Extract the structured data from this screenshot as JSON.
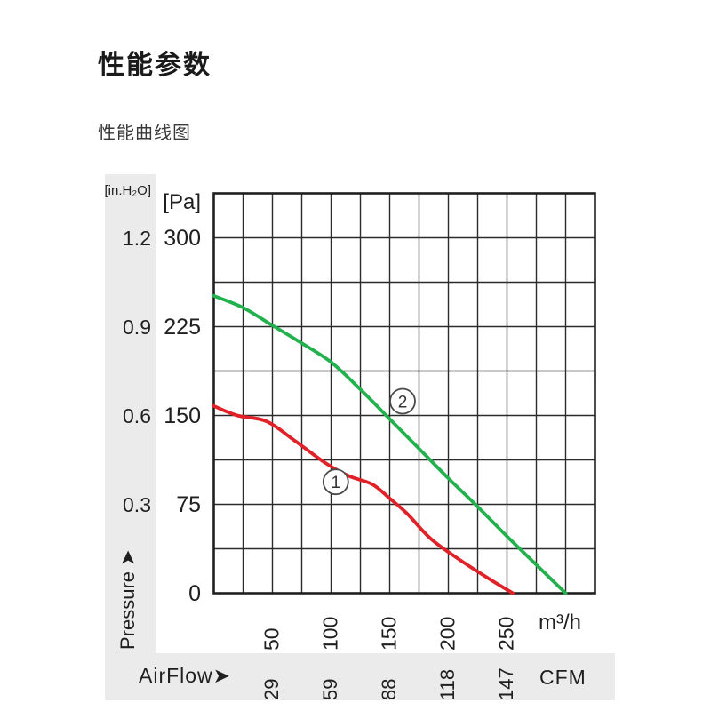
{
  "header": {
    "title": "性能参数",
    "subtitle": "性能曲线图"
  },
  "colors": {
    "curve1_red": "#e02127",
    "curve2_green": "#22b14c",
    "grid": "#2b2b2b",
    "band_gray": "#ebebeb",
    "text": "#1f1f1f"
  },
  "chart_data": {
    "type": "line",
    "title": "性能曲线图",
    "grid": {
      "cols": 13,
      "rows": 9,
      "x_per_cell": 25,
      "y_per_cell": 37.5,
      "grid_on": true
    },
    "x_axis": {
      "unit_primary": "m³/h",
      "unit_secondary": "CFM",
      "row_label": "AirFlow➤",
      "ticks_primary": [
        "50",
        "100",
        "150",
        "200",
        "250"
      ],
      "ticks_primary_values": [
        50,
        100,
        150,
        200,
        250
      ],
      "ticks_secondary": [
        "29",
        "59",
        "88",
        "118",
        "147"
      ],
      "range": [
        0,
        325
      ]
    },
    "y_axis": {
      "unit_primary": "[Pa]",
      "unit_secondary": "[in.H₂O]",
      "axis_label": "Pressure ➤",
      "ticks_primary": [
        "300",
        "225",
        "150",
        "75",
        "0"
      ],
      "ticks_primary_values": [
        300,
        225,
        150,
        75,
        0
      ],
      "ticks_secondary": [
        "1.2",
        "0.9",
        "0.6",
        "0.3"
      ],
      "ticks_secondary_values": [
        1.2,
        0.9,
        0.6,
        0.3
      ],
      "range": [
        0,
        337.5
      ]
    },
    "series": [
      {
        "name": "curve-1",
        "label": "1",
        "label_circled": "①",
        "color": "#e02127",
        "label_pos": [
          104,
          94
        ],
        "points": [
          [
            0,
            158
          ],
          [
            20,
            150
          ],
          [
            45,
            145
          ],
          [
            70,
            128
          ],
          [
            95,
            110
          ],
          [
            115,
            99
          ],
          [
            135,
            92
          ],
          [
            150,
            80
          ],
          [
            165,
            67
          ],
          [
            185,
            46
          ],
          [
            210,
            28
          ],
          [
            235,
            12
          ],
          [
            255,
            0
          ]
        ]
      },
      {
        "name": "curve-2",
        "label": "2",
        "label_circled": "②",
        "color": "#22b14c",
        "label_pos": [
          161,
          162
        ],
        "points": [
          [
            0,
            251
          ],
          [
            25,
            241
          ],
          [
            50,
            226
          ],
          [
            75,
            211
          ],
          [
            100,
            195
          ],
          [
            125,
            172
          ],
          [
            150,
            147
          ],
          [
            175,
            122
          ],
          [
            200,
            97
          ],
          [
            225,
            73
          ],
          [
            250,
            48
          ],
          [
            275,
            24
          ],
          [
            300,
            0
          ]
        ]
      }
    ]
  }
}
